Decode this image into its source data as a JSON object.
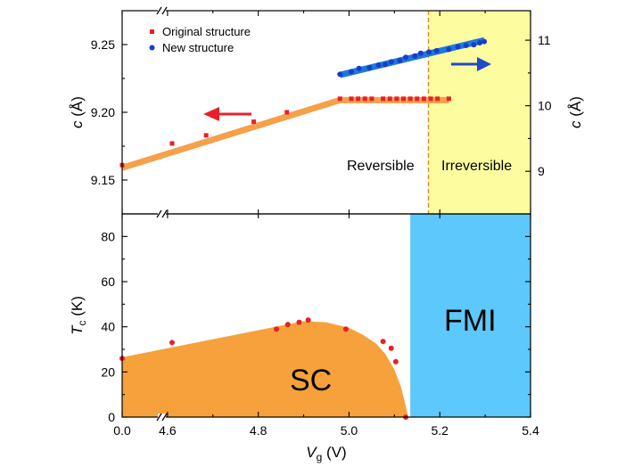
{
  "chart_data": [
    {
      "panel": "top",
      "type": "scatter",
      "x_tick_labels": [
        "0.0",
        "4.6",
        "4.8",
        "5.0",
        "5.2",
        "5.4"
      ],
      "xlim": [
        4.5,
        5.4
      ],
      "y_left": {
        "label_italic": "c",
        "label_rest": " (Å)",
        "lim": [
          9.125,
          9.275
        ],
        "ticks": [
          "9.15",
          "9.20",
          "9.25"
        ]
      },
      "y_right": {
        "label_italic": "c",
        "label_rest": " (Å)",
        "lim": [
          8.35,
          11.45
        ],
        "ticks": [
          "9",
          "10",
          "11"
        ]
      },
      "regions": [
        {
          "label": "Reversible",
          "x_range": [
            4.5,
            5.175
          ]
        },
        {
          "label": "Irreversible",
          "x_range": [
            5.175,
            5.4
          ],
          "color": "#fdfda0"
        }
      ],
      "boundary_x": 5.175,
      "series": [
        {
          "name": "Original structure",
          "axis": "left",
          "marker": "square",
          "color": "#e8202a",
          "x": [
            4.5,
            4.61,
            4.685,
            4.79,
            4.863,
            4.98,
            5.005,
            5.02,
            5.035,
            5.05,
            5.075,
            5.09,
            5.105,
            5.12,
            5.135,
            5.15,
            5.165,
            5.18,
            5.195,
            5.22
          ],
          "y": [
            9.161,
            9.177,
            9.183,
            9.193,
            9.2,
            9.21,
            9.21,
            9.21,
            9.21,
            9.21,
            9.21,
            9.21,
            9.21,
            9.21,
            9.21,
            9.21,
            9.21,
            9.21,
            9.21,
            9.21
          ]
        },
        {
          "name": "New structure",
          "axis": "right",
          "marker": "circle",
          "color": "#1a3cc8",
          "x": [
            4.98,
            5.005,
            5.022,
            5.045,
            5.065,
            5.08,
            5.093,
            5.112,
            5.125,
            5.145,
            5.158,
            5.176,
            5.193,
            5.22,
            5.24,
            5.258,
            5.275,
            5.288,
            5.298
          ],
          "y": [
            10.48,
            10.52,
            10.57,
            10.58,
            10.62,
            10.63,
            10.67,
            10.69,
            10.74,
            10.76,
            10.8,
            10.82,
            10.84,
            10.86,
            10.9,
            10.92,
            10.93,
            10.96,
            10.98
          ]
        }
      ],
      "fit_lines": [
        {
          "color": "#f5a04a",
          "axis": "left",
          "x": [
            4.5,
            4.98,
            5.22
          ],
          "y": [
            9.159,
            9.209,
            9.209
          ]
        },
        {
          "color": "#1e78dc",
          "axis": "right",
          "x": [
            4.98,
            5.298
          ],
          "y": [
            10.47,
            11.0
          ]
        }
      ],
      "arrows": [
        {
          "color": "#e8202a",
          "direction": "left",
          "points_to_axis": "left"
        },
        {
          "color": "#1e4acb",
          "direction": "right",
          "points_to_axis": "right"
        }
      ]
    },
    {
      "panel": "bottom",
      "type": "area",
      "xlabel_italic": "V",
      "xlabel_sub": "g",
      "xlabel_rest": " (V)",
      "x_tick_labels": [
        "0.0",
        "4.6",
        "4.8",
        "5.0",
        "5.2",
        "5.4"
      ],
      "xlim": [
        4.5,
        5.4
      ],
      "ylabel_italic": "T",
      "ylabel_sub": "c",
      "ylabel_rest": " (K)",
      "ylim": [
        0,
        90
      ],
      "y_ticks": [
        "0",
        "20",
        "40",
        "60",
        "80"
      ],
      "regions": [
        {
          "label": "SC",
          "color": "#f7a13c",
          "boundary_x": [
            4.5,
            4.6,
            4.7,
            4.8,
            4.85,
            4.9,
            4.95,
            5.0,
            5.03,
            5.06,
            5.08,
            5.1,
            5.115,
            5.125,
            5.13
          ],
          "boundary_y": [
            26.5,
            30.5,
            34.5,
            38.5,
            40.5,
            42.5,
            42.0,
            39.5,
            36.5,
            32.5,
            28.0,
            21.0,
            13.0,
            5.0,
            0
          ]
        },
        {
          "label": "FMI",
          "color": "#5cc8fc",
          "x_range": [
            5.135,
            5.4
          ]
        }
      ],
      "series": [
        {
          "name": "",
          "marker": "circle",
          "color": "#e8202a",
          "x": [
            4.5,
            4.61,
            4.84,
            4.865,
            4.89,
            4.91,
            4.993,
            5.075,
            5.093,
            5.103,
            5.125
          ],
          "y": [
            26,
            33,
            39,
            41,
            42,
            43,
            39,
            33.5,
            30.5,
            24.5,
            0
          ]
        }
      ]
    }
  ]
}
